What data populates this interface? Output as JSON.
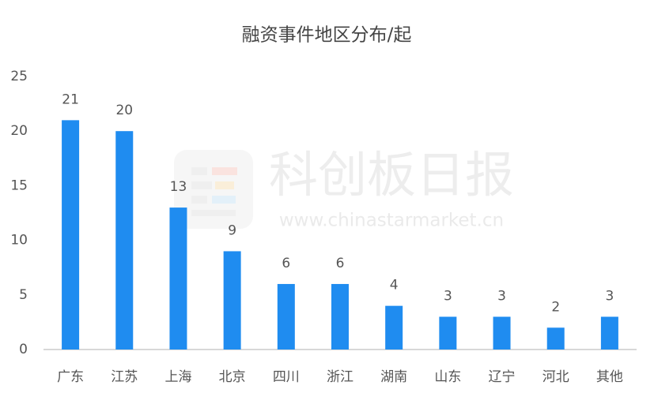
{
  "chart_data": {
    "type": "bar",
    "title": "融资事件地区分布/起",
    "categories": [
      "广东",
      "江苏",
      "上海",
      "北京",
      "四川",
      "浙江",
      "湖南",
      "山东",
      "辽宁",
      "河北",
      "其他"
    ],
    "values": [
      21,
      20,
      13,
      9,
      6,
      6,
      4,
      3,
      3,
      2,
      3
    ],
    "color": "#1f8cf0",
    "ylim": [
      0,
      25
    ],
    "yticks": [
      0,
      5,
      10,
      15,
      20,
      25
    ],
    "grid": false,
    "data_labels": true,
    "watermark": {
      "brand": "科创板日报",
      "url": "www.chinastarmarket.cn"
    }
  }
}
